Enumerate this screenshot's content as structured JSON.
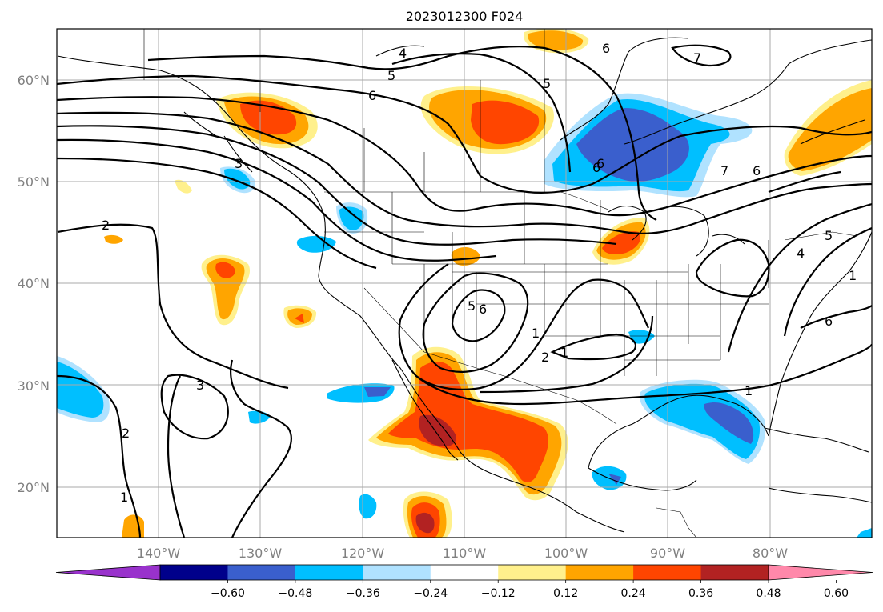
{
  "title": "2023012300 F024",
  "map": {
    "lon_range": [
      -150,
      -70
    ],
    "lat_range": [
      15,
      65
    ],
    "lat_ticks": [
      "20°N",
      "30°N",
      "40°N",
      "50°N",
      "60°N"
    ],
    "lon_ticks": [
      "140°W",
      "130°W",
      "120°W",
      "110°W",
      "100°W",
      "90°W",
      "80°W"
    ],
    "grid": true
  },
  "colorbar": {
    "levels": [
      "−0.60",
      "−0.48",
      "−0.36",
      "−0.24",
      "−0.12",
      "0.12",
      "0.24",
      "0.36",
      "0.48",
      "0.60"
    ],
    "colors": [
      "#9932cc",
      "#00008b",
      "#3a5fcd",
      "#00bfff",
      "#b0e2ff",
      "#ffffff",
      "#fff08c",
      "#ffa500",
      "#ff4500",
      "#b22222",
      "#ff88aa"
    ],
    "extend": "both"
  },
  "contour_labels": [
    "2",
    "3",
    "4",
    "5",
    "6",
    "7",
    "6",
    "5",
    "6",
    "3",
    "2",
    "1",
    "1",
    "5",
    "6",
    "2",
    "1",
    "1",
    "6",
    "7",
    "6",
    "6",
    "1",
    "4",
    "5"
  ]
}
